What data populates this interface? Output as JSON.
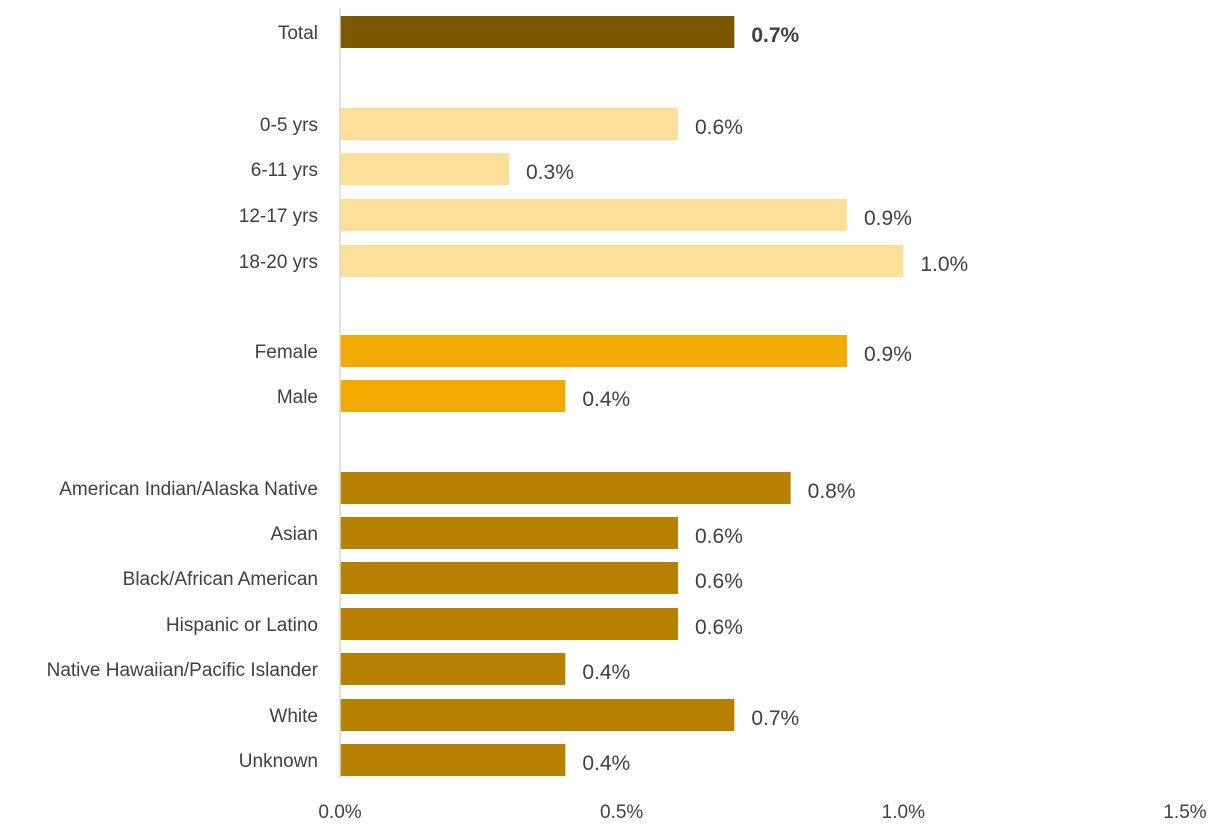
{
  "chart_data": {
    "type": "bar",
    "orientation": "horizontal",
    "xlim": [
      0,
      1.5
    ],
    "x_ticks": [
      "0.0%",
      "0.5%",
      "1.0%",
      "1.5%"
    ],
    "grid": false,
    "categories": [
      {
        "label": "Total",
        "value": 0.7,
        "display": "0.7%",
        "group": "total",
        "color": "#7a5700",
        "bold": true
      },
      {
        "label": "0-5 yrs",
        "value": 0.6,
        "display": "0.6%",
        "group": "age",
        "color": "#fedf99"
      },
      {
        "label": "6-11 yrs",
        "value": 0.3,
        "display": "0.3%",
        "group": "age",
        "color": "#fedf99"
      },
      {
        "label": "12-17 yrs",
        "value": 0.9,
        "display": "0.9%",
        "group": "age",
        "color": "#fedf99"
      },
      {
        "label": "18-20 yrs",
        "value": 1.0,
        "display": "1.0%",
        "group": "age",
        "color": "#fedf99"
      },
      {
        "label": "Female",
        "value": 0.9,
        "display": "0.9%",
        "group": "sex",
        "color": "#f0aa00"
      },
      {
        "label": "Male",
        "value": 0.4,
        "display": "0.4%",
        "group": "sex",
        "color": "#f0aa00"
      },
      {
        "label": "American Indian/Alaska Native",
        "value": 0.8,
        "display": "0.8%",
        "group": "race",
        "color": "#b78100"
      },
      {
        "label": "Asian",
        "value": 0.6,
        "display": "0.6%",
        "group": "race",
        "color": "#b78100"
      },
      {
        "label": "Black/African American",
        "value": 0.6,
        "display": "0.6%",
        "group": "race",
        "color": "#b78100"
      },
      {
        "label": "Hispanic or Latino",
        "value": 0.6,
        "display": "0.6%",
        "group": "race",
        "color": "#b78100"
      },
      {
        "label": "Native Hawaiian/Pacific Islander",
        "value": 0.4,
        "display": "0.4%",
        "group": "race",
        "color": "#b78100"
      },
      {
        "label": "White",
        "value": 0.7,
        "display": "0.7%",
        "group": "race",
        "color": "#b78100"
      },
      {
        "label": "Unknown",
        "value": 0.4,
        "display": "0.4%",
        "group": "race",
        "color": "#b78100"
      }
    ]
  }
}
